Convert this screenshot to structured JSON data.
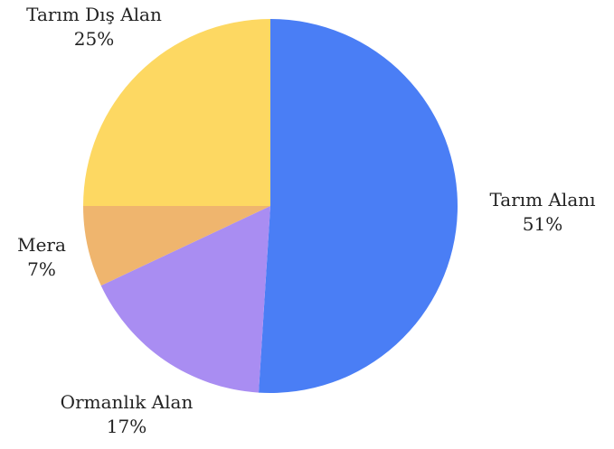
{
  "chart_data": {
    "type": "pie",
    "title": "",
    "slices": [
      {
        "label": "Tarım Alanı",
        "value": 51,
        "value_label": "51%",
        "color": "#4a7ef5"
      },
      {
        "label": "Ormanlık Alan",
        "value": 17,
        "value_label": "17%",
        "color": "#a98df2"
      },
      {
        "label": "Mera",
        "value": 7,
        "value_label": "7%",
        "color": "#efb56e"
      },
      {
        "label": "Tarım Dış Alan",
        "value": 25,
        "value_label": "25%",
        "color": "#fdd862"
      }
    ],
    "start_angle_deg": 0,
    "direction": "clockwise",
    "legend": "none",
    "labels": "outside"
  }
}
